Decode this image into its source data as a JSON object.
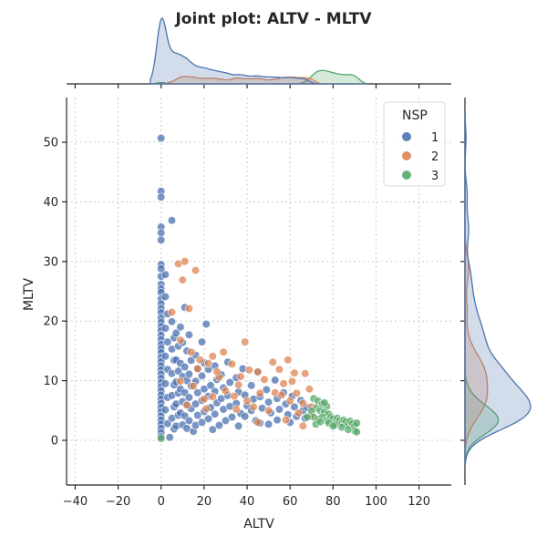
{
  "chart_data": {
    "type": "scatter",
    "title": "Joint plot: ALTV - MLTV",
    "xlabel": "ALTV",
    "ylabel": "MLTV",
    "xlim": [
      -44,
      135
    ],
    "ylim": [
      -7.5,
      57.5
    ],
    "xticks": [
      "−40",
      "−20",
      "0",
      "20",
      "40",
      "60",
      "80",
      "100",
      "120"
    ],
    "xtick_values": [
      -40,
      -20,
      0,
      20,
      40,
      60,
      80,
      100,
      120
    ],
    "yticks": [
      "0",
      "10",
      "20",
      "30",
      "40",
      "50"
    ],
    "ytick_values": [
      0,
      10,
      20,
      30,
      40,
      50
    ],
    "grid": true,
    "legend": {
      "title": "NSP",
      "placement": "top-right",
      "entries": [
        "1",
        "2",
        "3"
      ]
    },
    "colors": {
      "1": "#4c72b0",
      "2": "#dd8452",
      "3": "#55a868"
    },
    "series": [
      {
        "name": "1",
        "points": [
          [
            0,
            50.7
          ],
          [
            0,
            41.8
          ],
          [
            0,
            40.8
          ],
          [
            5,
            36.9
          ],
          [
            0,
            35.8
          ],
          [
            0,
            34.8
          ],
          [
            0,
            33.6
          ],
          [
            0,
            29.5
          ],
          [
            0,
            28.8
          ],
          [
            0,
            27.5
          ],
          [
            0,
            26.2
          ],
          [
            0,
            25.4
          ],
          [
            0,
            24.8
          ],
          [
            0,
            23.7
          ],
          [
            0,
            22.9
          ],
          [
            0,
            22.1
          ],
          [
            0,
            21.4
          ],
          [
            0,
            20.5
          ],
          [
            0,
            19.8
          ],
          [
            0,
            19.1
          ],
          [
            0,
            18.4
          ],
          [
            0,
            17.6
          ],
          [
            0,
            16.9
          ],
          [
            0,
            16.1
          ],
          [
            0,
            15.4
          ],
          [
            0,
            14.7
          ],
          [
            0,
            13.9
          ],
          [
            0,
            13.2
          ],
          [
            0,
            12.5
          ],
          [
            0,
            11.8
          ],
          [
            0,
            11.1
          ],
          [
            0,
            10.4
          ],
          [
            0,
            9.7
          ],
          [
            0,
            9.0
          ],
          [
            0,
            8.3
          ],
          [
            0,
            7.6
          ],
          [
            0,
            6.9
          ],
          [
            0,
            6.2
          ],
          [
            0,
            5.5
          ],
          [
            0,
            4.8
          ],
          [
            0,
            4.1
          ],
          [
            0,
            3.4
          ],
          [
            0,
            2.7
          ],
          [
            0,
            2.0
          ],
          [
            0,
            1.3
          ],
          [
            0,
            0.6
          ],
          [
            2,
            27.8
          ],
          [
            2,
            24.1
          ],
          [
            3,
            21.2
          ],
          [
            2,
            18.8
          ],
          [
            3,
            16.5
          ],
          [
            2,
            14.1
          ],
          [
            3,
            11.9
          ],
          [
            2,
            9.5
          ],
          [
            3,
            7.2
          ],
          [
            2,
            5.1
          ],
          [
            3,
            2.8
          ],
          [
            4,
            0.5
          ],
          [
            5,
            19.9
          ],
          [
            6,
            17.2
          ],
          [
            5,
            15.3
          ],
          [
            6,
            13.4
          ],
          [
            5,
            11.2
          ],
          [
            6,
            9.3
          ],
          [
            5,
            7.5
          ],
          [
            6,
            5.6
          ],
          [
            5,
            3.7
          ],
          [
            6,
            1.9
          ],
          [
            7,
            18.0
          ],
          [
            8,
            15.8
          ],
          [
            7,
            13.5
          ],
          [
            8,
            11.6
          ],
          [
            7,
            9.8
          ],
          [
            8,
            7.9
          ],
          [
            7,
            6.1
          ],
          [
            8,
            4.2
          ],
          [
            7,
            2.4
          ],
          [
            9,
            19.0
          ],
          [
            10,
            16.4
          ],
          [
            9,
            12.9
          ],
          [
            10,
            10.7
          ],
          [
            9,
            8.6
          ],
          [
            10,
            6.5
          ],
          [
            9,
            4.6
          ],
          [
            10,
            2.6
          ],
          [
            11,
            22.3
          ],
          [
            12,
            15.0
          ],
          [
            11,
            12.3
          ],
          [
            12,
            10.0
          ],
          [
            11,
            8.0
          ],
          [
            12,
            6.0
          ],
          [
            11,
            4.1
          ],
          [
            12,
            2.0
          ],
          [
            13,
            17.7
          ],
          [
            14,
            13.4
          ],
          [
            13,
            11.1
          ],
          [
            14,
            9.1
          ],
          [
            13,
            7.2
          ],
          [
            14,
            5.3
          ],
          [
            13,
            3.3
          ],
          [
            15,
            1.5
          ],
          [
            16,
            14.3
          ],
          [
            17,
            12.0
          ],
          [
            16,
            9.9
          ],
          [
            17,
            8.0
          ],
          [
            16,
            6.1
          ],
          [
            17,
            4.2
          ],
          [
            16,
            2.5
          ],
          [
            19,
            16.5
          ],
          [
            20,
            13.0
          ],
          [
            19,
            10.8
          ],
          [
            20,
            8.6
          ],
          [
            19,
            6.7
          ],
          [
            20,
            4.8
          ],
          [
            19,
            3.0
          ],
          [
            21,
            19.5
          ],
          [
            22,
            11.9
          ],
          [
            23,
            9.2
          ],
          [
            22,
            7.4
          ],
          [
            23,
            5.5
          ],
          [
            22,
            3.6
          ],
          [
            24,
            1.8
          ],
          [
            25,
            12.5
          ],
          [
            26,
            10.2
          ],
          [
            25,
            8.2
          ],
          [
            26,
            6.3
          ],
          [
            25,
            4.4
          ],
          [
            27,
            2.5
          ],
          [
            28,
            11.0
          ],
          [
            29,
            8.8
          ],
          [
            28,
            7.0
          ],
          [
            29,
            5.2
          ],
          [
            30,
            3.3
          ],
          [
            31,
            13.1
          ],
          [
            32,
            9.7
          ],
          [
            31,
            7.5
          ],
          [
            32,
            5.7
          ],
          [
            33,
            3.9
          ],
          [
            35,
            10.5
          ],
          [
            36,
            8.1
          ],
          [
            35,
            6.2
          ],
          [
            37,
            4.5
          ],
          [
            36,
            2.4
          ],
          [
            38,
            12.0
          ],
          [
            39,
            7.6
          ],
          [
            40,
            5.8
          ],
          [
            39,
            4.0
          ],
          [
            42,
            9.2
          ],
          [
            43,
            6.9
          ],
          [
            42,
            5.0
          ],
          [
            44,
            3.3
          ],
          [
            45,
            11.4
          ],
          [
            46,
            7.3
          ],
          [
            47,
            5.4
          ],
          [
            46,
            2.9
          ],
          [
            49,
            8.5
          ],
          [
            50,
            6.4
          ],
          [
            51,
            4.6
          ],
          [
            50,
            2.7
          ],
          [
            53,
            10.1
          ],
          [
            54,
            7.0
          ],
          [
            55,
            5.2
          ],
          [
            54,
            3.4
          ],
          [
            57,
            8.0
          ],
          [
            58,
            6.1
          ],
          [
            59,
            4.3
          ],
          [
            60,
            3.0
          ],
          [
            61,
            7.4
          ],
          [
            62,
            5.6
          ],
          [
            63,
            4.0
          ],
          [
            65,
            6.7
          ],
          [
            66,
            5.0
          ],
          [
            67,
            3.7
          ],
          [
            68,
            5.5
          ]
        ]
      },
      {
        "name": "2",
        "points": [
          [
            8,
            29.6
          ],
          [
            11,
            30.0
          ],
          [
            16,
            28.5
          ],
          [
            10,
            26.9
          ],
          [
            13,
            22.1
          ],
          [
            5,
            21.5
          ],
          [
            9,
            16.8
          ],
          [
            14,
            14.8
          ],
          [
            18,
            13.5
          ],
          [
            24,
            14.1
          ],
          [
            29,
            14.8
          ],
          [
            22,
            12.9
          ],
          [
            39,
            16.5
          ],
          [
            33,
            12.8
          ],
          [
            41,
            11.8
          ],
          [
            27,
            10.6
          ],
          [
            37,
            10.7
          ],
          [
            45,
            11.5
          ],
          [
            52,
            13.1
          ],
          [
            59,
            13.5
          ],
          [
            48,
            10.2
          ],
          [
            55,
            11.9
          ],
          [
            62,
            11.3
          ],
          [
            67,
            11.2
          ],
          [
            57,
            9.5
          ],
          [
            63,
            7.9
          ],
          [
            69,
            8.6
          ],
          [
            53,
            8.0
          ],
          [
            46,
            7.9
          ],
          [
            34,
            7.4
          ],
          [
            24,
            7.3
          ],
          [
            15,
            9.1
          ],
          [
            20,
            6.9
          ],
          [
            30,
            8.3
          ],
          [
            40,
            6.6
          ],
          [
            60,
            6.6
          ],
          [
            66,
            6.2
          ],
          [
            70,
            5.6
          ],
          [
            64,
            4.6
          ],
          [
            58,
            3.4
          ],
          [
            66,
            2.4
          ],
          [
            50,
            5.0
          ],
          [
            17,
            12.0
          ],
          [
            26,
            11.5
          ],
          [
            36,
            9.3
          ],
          [
            43,
            5.6
          ],
          [
            56,
            7.6
          ],
          [
            61,
            9.9
          ],
          [
            70,
            4.1
          ],
          [
            45,
            3.0
          ],
          [
            35,
            5.2
          ],
          [
            21,
            5.3
          ],
          [
            12,
            5.9
          ],
          [
            9,
            9.9
          ]
        ]
      },
      {
        "name": "3",
        "points": [
          [
            0,
            0.3
          ],
          [
            71,
            7.0
          ],
          [
            73,
            6.6
          ],
          [
            75,
            6.1
          ],
          [
            77,
            5.7
          ],
          [
            72,
            5.4
          ],
          [
            74,
            5.0
          ],
          [
            76,
            4.7
          ],
          [
            78,
            4.4
          ],
          [
            70,
            4.9
          ],
          [
            71,
            3.9
          ],
          [
            73,
            3.5
          ],
          [
            75,
            3.9
          ],
          [
            77,
            3.3
          ],
          [
            79,
            3.9
          ],
          [
            80,
            3.6
          ],
          [
            81,
            3.1
          ],
          [
            82,
            3.7
          ],
          [
            83,
            3.3
          ],
          [
            84,
            2.9
          ],
          [
            85,
            3.4
          ],
          [
            86,
            3.1
          ],
          [
            87,
            2.6
          ],
          [
            88,
            3.2
          ],
          [
            89,
            2.8
          ],
          [
            90,
            2.4
          ],
          [
            91,
            2.9
          ],
          [
            90,
            1.6
          ],
          [
            91,
            1.4
          ],
          [
            87,
            1.8
          ],
          [
            84,
            2.2
          ],
          [
            81,
            2.6
          ],
          [
            78,
            2.9
          ],
          [
            72,
            2.7
          ],
          [
            68,
            3.9
          ],
          [
            76,
            6.3
          ],
          [
            80,
            2.4
          ],
          [
            74,
            3.1
          ]
        ]
      }
    ]
  }
}
